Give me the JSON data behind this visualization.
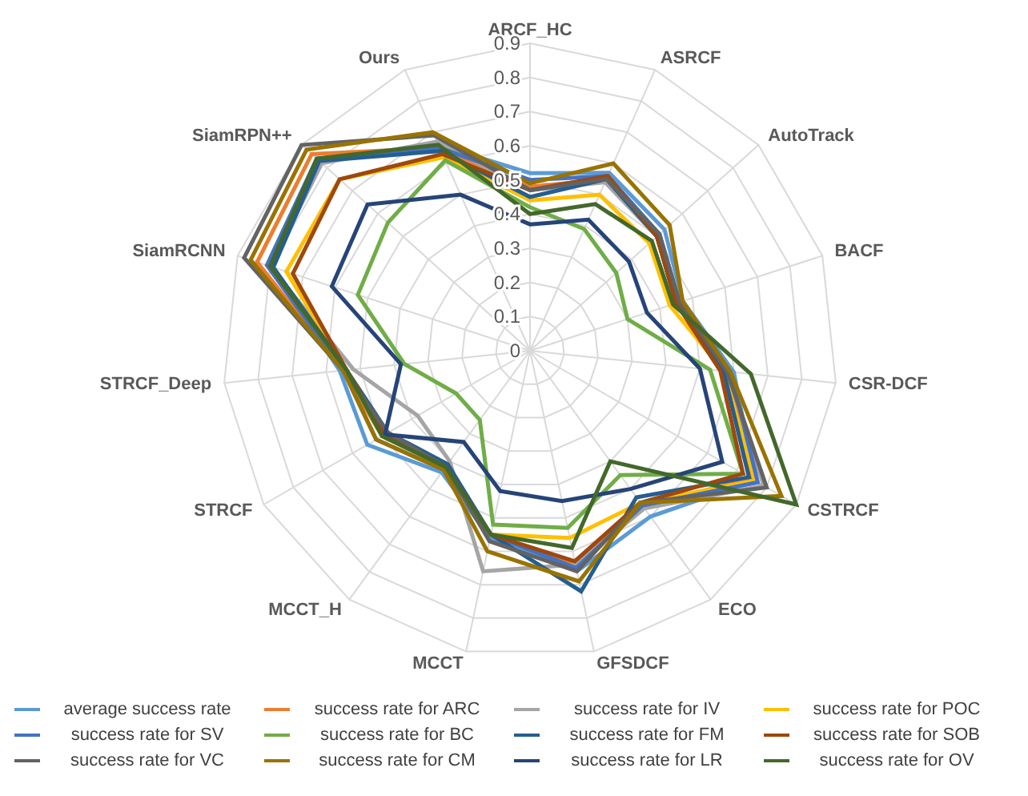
{
  "chart_data": {
    "type": "radar",
    "categories": [
      "ARCF_HC",
      "ASRCF",
      "AutoTrack",
      "BACF",
      "CSR-DCF",
      "CSTRCF",
      "ECO",
      "GFSDCF",
      "MCCT",
      "MCCT_H",
      "STRCF",
      "STRCF_Deep",
      "SiamRCNN",
      "SiamRPN++",
      "Ours"
    ],
    "ylim": [
      0,
      0.9
    ],
    "yticks": [
      0,
      0.1,
      0.2,
      0.3,
      0.4,
      0.5,
      0.6,
      0.7,
      0.8,
      0.9
    ],
    "grid": true,
    "legend": "bottom",
    "marker": "none",
    "series": [
      {
        "name": "average success rate",
        "color": "#5b9bd5",
        "values": [
          0.52,
          0.57,
          0.53,
          0.47,
          0.6,
          0.76,
          0.6,
          0.66,
          0.56,
          0.44,
          0.55,
          0.56,
          0.8,
          0.83,
          0.66
        ]
      },
      {
        "name": "success rate for ARC",
        "color": "#ed7d31",
        "values": [
          0.48,
          0.55,
          0.5,
          0.45,
          0.58,
          0.75,
          0.56,
          0.64,
          0.55,
          0.42,
          0.5,
          0.55,
          0.84,
          0.86,
          0.65
        ]
      },
      {
        "name": "success rate for IV",
        "color": "#a5a5a5",
        "values": [
          0.47,
          0.54,
          0.5,
          0.45,
          0.58,
          0.79,
          0.57,
          0.64,
          0.66,
          0.4,
          0.38,
          0.52,
          0.8,
          0.82,
          0.67
        ]
      },
      {
        "name": "success rate for POC",
        "color": "#ffc000",
        "values": [
          0.44,
          0.5,
          0.47,
          0.43,
          0.57,
          0.76,
          0.55,
          0.56,
          0.55,
          0.42,
          0.5,
          0.54,
          0.75,
          0.75,
          0.62
        ]
      },
      {
        "name": "success rate for SV",
        "color": "#4472c4",
        "values": [
          0.5,
          0.56,
          0.51,
          0.46,
          0.59,
          0.77,
          0.56,
          0.65,
          0.55,
          0.43,
          0.52,
          0.55,
          0.81,
          0.84,
          0.65
        ]
      },
      {
        "name": "success rate for BC",
        "color": "#70ad47",
        "values": [
          0.42,
          0.39,
          0.34,
          0.3,
          0.53,
          0.72,
          0.45,
          0.53,
          0.52,
          0.25,
          0.25,
          0.37,
          0.53,
          0.56,
          0.61
        ]
      },
      {
        "name": "success rate for FM",
        "color": "#255e91",
        "values": [
          0.45,
          0.55,
          0.5,
          0.45,
          0.57,
          0.74,
          0.53,
          0.72,
          0.55,
          0.41,
          0.48,
          0.54,
          0.79,
          0.83,
          0.64
        ]
      },
      {
        "name": "success rate for SOB",
        "color": "#9e480e",
        "values": [
          0.47,
          0.56,
          0.5,
          0.45,
          0.56,
          0.72,
          0.55,
          0.63,
          0.55,
          0.42,
          0.49,
          0.54,
          0.73,
          0.75,
          0.63
        ]
      },
      {
        "name": "success rate for VC",
        "color": "#636363",
        "values": [
          0.47,
          0.55,
          0.51,
          0.46,
          0.58,
          0.8,
          0.55,
          0.66,
          0.57,
          0.42,
          0.48,
          0.55,
          0.88,
          0.9,
          0.69
        ]
      },
      {
        "name": "success rate for CM",
        "color": "#997300",
        "values": [
          0.49,
          0.6,
          0.55,
          0.47,
          0.59,
          0.85,
          0.55,
          0.69,
          0.6,
          0.43,
          0.52,
          0.55,
          0.86,
          0.88,
          0.7
        ]
      },
      {
        "name": "success rate for LR",
        "color": "#264478",
        "values": [
          0.37,
          0.42,
          0.39,
          0.36,
          0.5,
          0.65,
          0.5,
          0.45,
          0.42,
          0.33,
          0.49,
          0.38,
          0.61,
          0.64,
          0.5
        ]
      },
      {
        "name": "success rate for OV",
        "color": "#43682b",
        "values": [
          0.4,
          0.47,
          0.48,
          0.44,
          0.65,
          0.9,
          0.4,
          0.59,
          0.55,
          0.42,
          0.5,
          0.54,
          0.8,
          0.84,
          0.66
        ]
      }
    ]
  }
}
